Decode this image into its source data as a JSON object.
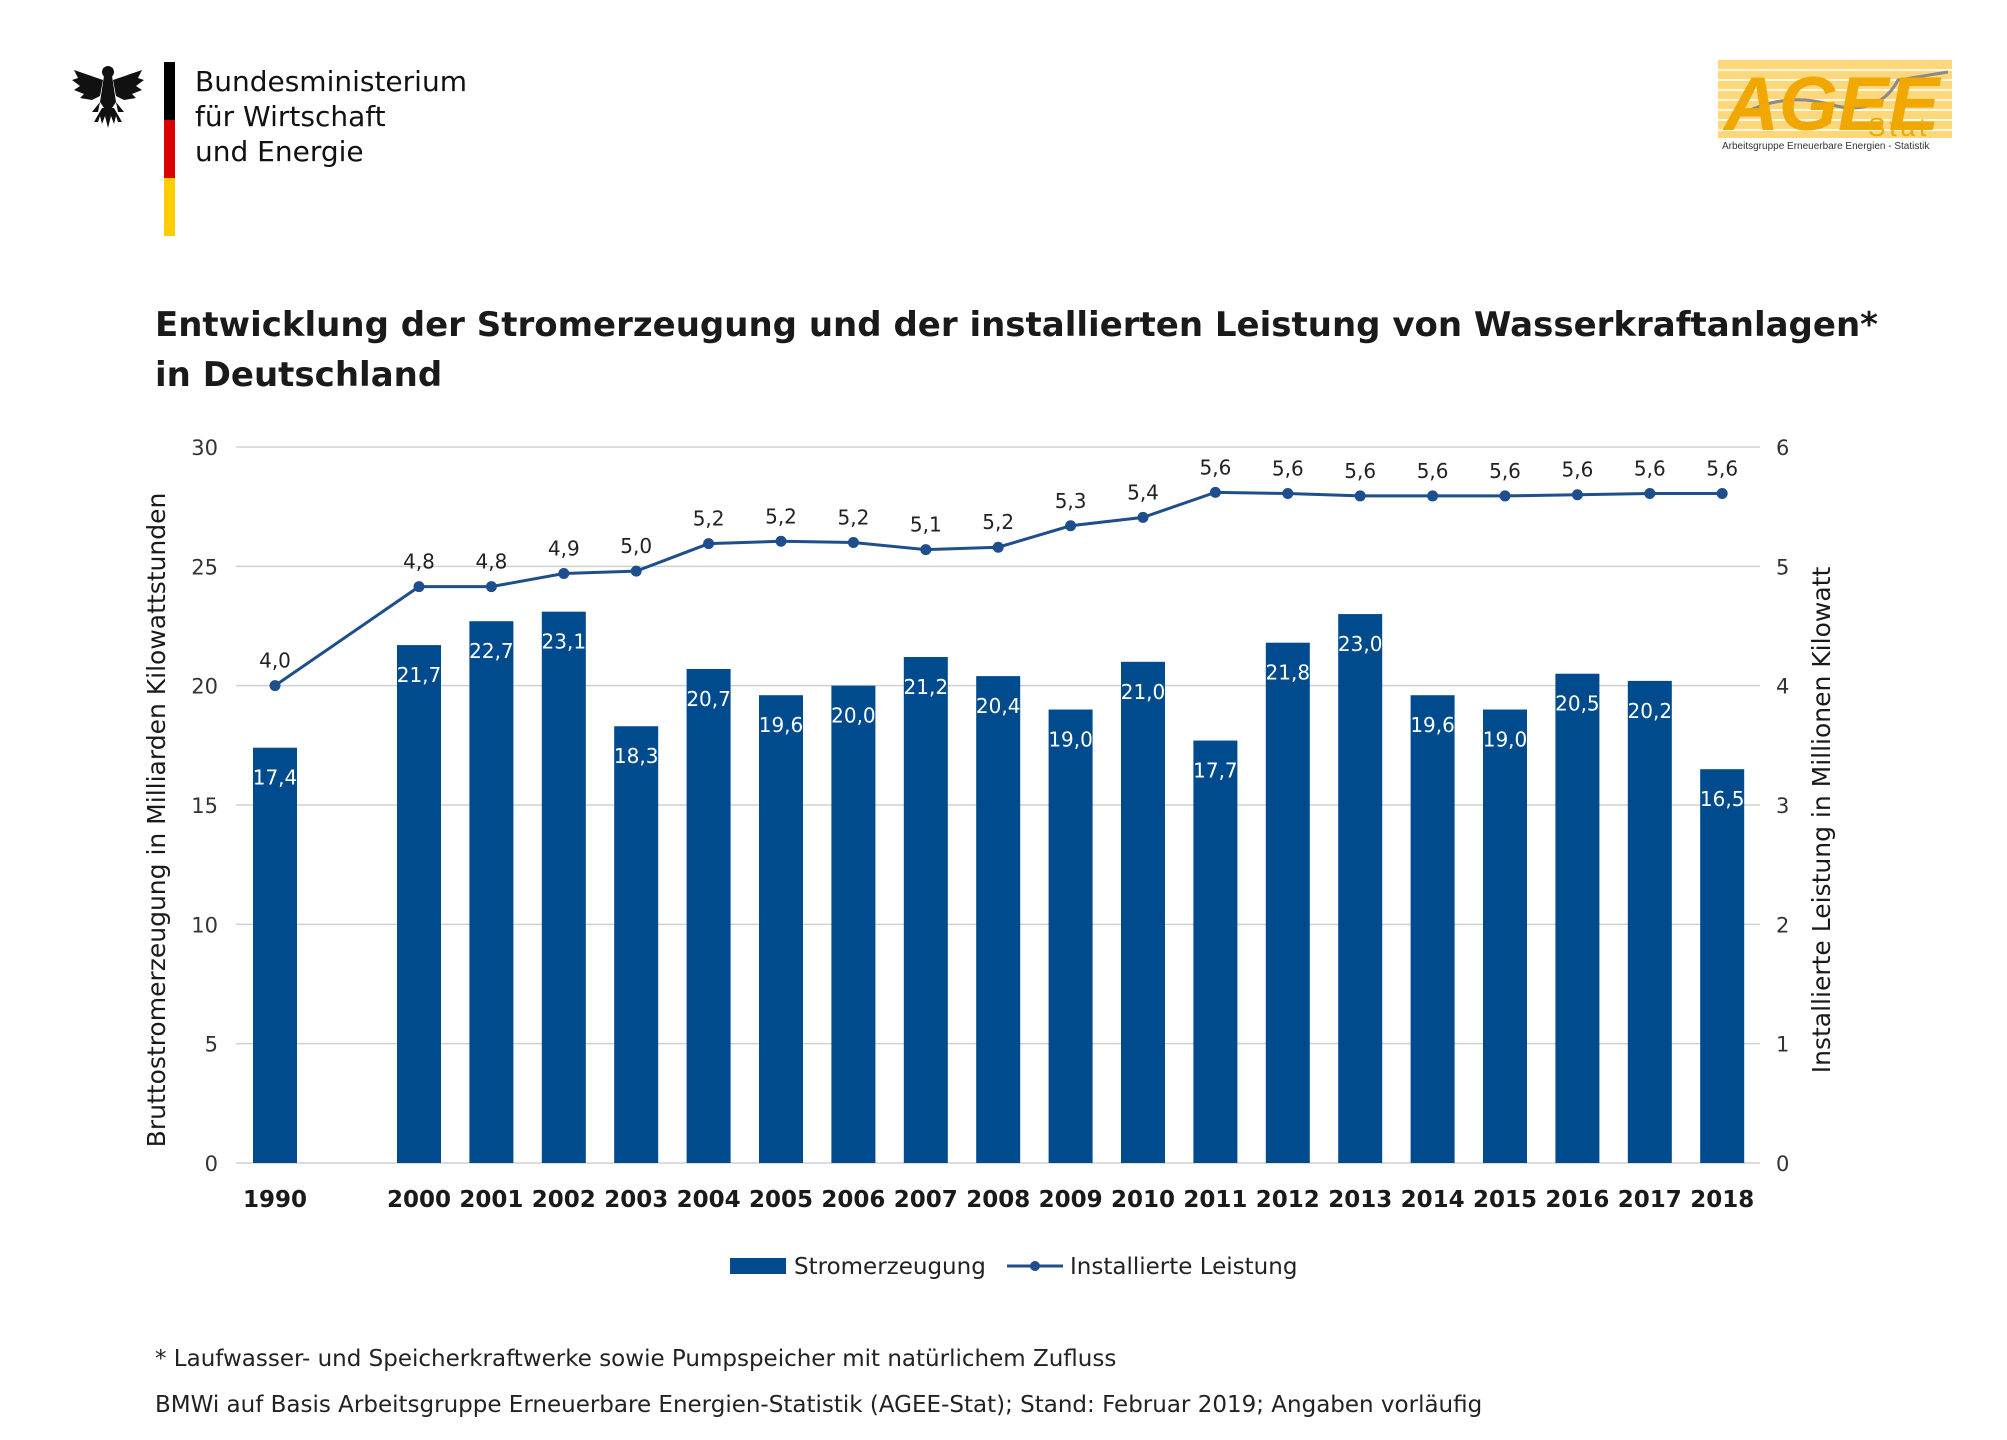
{
  "header": {
    "ministry_lines": [
      "Bundesministerium",
      "für Wirtschaft",
      "und Energie"
    ],
    "agee_logo_main": "AGEE",
    "agee_logo_sub": "Stat",
    "agee_logo_caption": "Arbeitsgruppe Erneuerbare Energien - Statistik"
  },
  "chart_data": {
    "type": "bar",
    "title_lines": [
      "Entwicklung der Stromerzeugung und der installierten Leistung von Wasserkraftanlagen*",
      "in Deutschland"
    ],
    "ylabel": "Bruttostromerzeugung in Milliarden Kilowattstunden",
    "y2label": "Installierte Leistung in Millionen Kilowatt",
    "ylim": [
      0,
      30
    ],
    "y2lim": [
      0,
      6
    ],
    "yticks": [
      "0",
      "5",
      "10",
      "15",
      "20",
      "25",
      "30"
    ],
    "y2ticks": [
      "0",
      "1",
      "2",
      "3",
      "4",
      "5",
      "6"
    ],
    "grid": true,
    "categories": [
      "1990",
      "2000",
      "2001",
      "2002",
      "2003",
      "2004",
      "2005",
      "2006",
      "2007",
      "2008",
      "2009",
      "2010",
      "2011",
      "2012",
      "2013",
      "2014",
      "2015",
      "2016",
      "2017",
      "2018"
    ],
    "series": [
      {
        "name": "Stromerzeugung",
        "type": "bar",
        "axis": "left",
        "color": "#004b8d",
        "values": [
          17.4,
          21.7,
          22.7,
          23.1,
          18.3,
          20.7,
          19.6,
          20.0,
          21.2,
          20.4,
          19.0,
          21.0,
          17.7,
          21.8,
          23.0,
          19.6,
          19.0,
          20.5,
          20.2,
          16.5
        ],
        "labels": [
          "17,4",
          "21,7",
          "22,7",
          "23,1",
          "18,3",
          "20,7",
          "19,6",
          "20,0",
          "21,2",
          "20,4",
          "19,0",
          "21,0",
          "17,7",
          "21,8",
          "23,0",
          "19,6",
          "19,0",
          "20,5",
          "20,2",
          "16,5"
        ]
      },
      {
        "name": "Installierte Leistung",
        "type": "line",
        "axis": "right",
        "color": "#1f4e8c",
        "values": [
          4.0,
          4.83,
          4.83,
          4.94,
          4.96,
          5.19,
          5.21,
          5.2,
          5.14,
          5.16,
          5.34,
          5.41,
          5.62,
          5.61,
          5.59,
          5.59,
          5.59,
          5.6,
          5.61,
          5.61
        ],
        "labels": [
          "4,0",
          "4,8",
          "4,8",
          "4,9",
          "5,0",
          "5,2",
          "5,2",
          "5,2",
          "5,1",
          "5,2",
          "5,3",
          "5,4",
          "5,6",
          "5,6",
          "5,6",
          "5,6",
          "5,6",
          "5,6",
          "5,6",
          "5,6"
        ]
      }
    ],
    "legend_position": "bottom-center"
  },
  "footer": {
    "footnote": "* Laufwasser- und Speicherkraftwerke sowie Pumpspeicher mit natürlichem Zufluss",
    "source": "BMWi auf Basis Arbeitsgruppe  Erneuerbare Energien-Statistik (AGEE-Stat); Stand: Februar 2019; Angaben vorläufig"
  }
}
